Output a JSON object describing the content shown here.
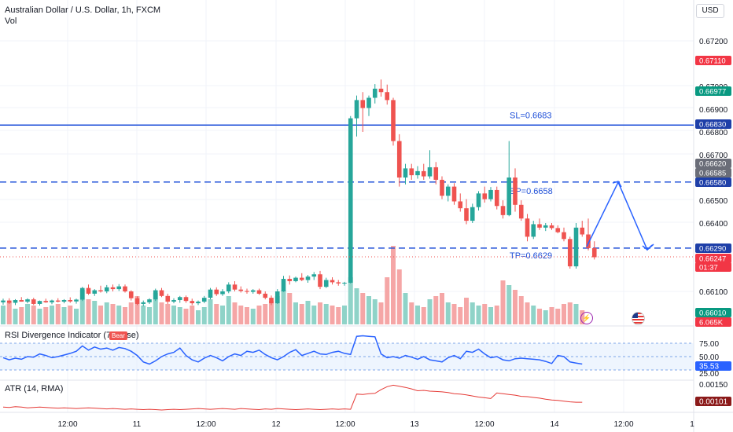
{
  "header": {
    "symbol_title": "Australian Dollar / U.S. Dollar, 1h, FXCM",
    "volume_label": "Vol"
  },
  "currency_button": "USD",
  "colors": {
    "up": "#26a69a",
    "down": "#ef5350",
    "volume_up": "#8fd3c8",
    "volume_down": "#f5a6a6",
    "level_line": "#1e4fd8",
    "rsi_line": "#2962ff",
    "atr_line": "#e53935"
  },
  "price_axis": {
    "ticks": [
      "0.67200",
      "0.67000",
      "0.66900",
      "0.66800",
      "0.66700",
      "0.66500",
      "0.66400",
      "0.66100"
    ],
    "badges": [
      {
        "text": "0.67110",
        "style": "red"
      },
      {
        "text": "0.66977",
        "style": "green"
      },
      {
        "text": "0.66830",
        "style": "navy"
      },
      {
        "text": "0.66620",
        "style": "gray"
      },
      {
        "text": "0.66585",
        "style": "gray"
      },
      {
        "text": "0.66580",
        "style": "navy"
      },
      {
        "text": "0.66290",
        "style": "navy"
      },
      {
        "text": "0.66247",
        "style": "red"
      },
      {
        "text": "01:37",
        "style": "red"
      },
      {
        "text": "0.66010",
        "style": "green"
      },
      {
        "text": "6.065K",
        "style": "red"
      }
    ]
  },
  "levels": [
    {
      "label": "SL=0.6683",
      "price": 0.6683,
      "style": "solid"
    },
    {
      "label": "EP=0.6658",
      "price": 0.6658,
      "style": "dashed"
    },
    {
      "label": "TP=0.6629",
      "price": 0.6629,
      "style": "dashed"
    }
  ],
  "time_axis": [
    "12:00",
    "11",
    "12:00",
    "12",
    "12:00",
    "13",
    "12:00",
    "14",
    "12:00",
    "1"
  ],
  "rsi": {
    "title": "RSI Divergence Indicator (7, close)",
    "flag": "Bear",
    "ticks": [
      "75.00",
      "50.00",
      "25.00"
    ],
    "value_badge": "35.53",
    "values": [
      48,
      44,
      47,
      45,
      50,
      49,
      55,
      52,
      48,
      50,
      53,
      56,
      60,
      70,
      62,
      68,
      64,
      66,
      62,
      67,
      65,
      60,
      52,
      40,
      36,
      42,
      50,
      55,
      58,
      66,
      52,
      44,
      40,
      47,
      52,
      48,
      42,
      50,
      55,
      52,
      60,
      58,
      62,
      54,
      48,
      44,
      50,
      58,
      63,
      52,
      56,
      60,
      55,
      54,
      58,
      60,
      56,
      54,
      88,
      89,
      88,
      87,
      55,
      48,
      50,
      47,
      52,
      49,
      45,
      50,
      44,
      42,
      40,
      48,
      52,
      46,
      60,
      58,
      64,
      55,
      48,
      50,
      44,
      42,
      46,
      47,
      46,
      45,
      44,
      41,
      37,
      52,
      50,
      40,
      38,
      36
    ]
  },
  "atr": {
    "title": "ATR (14, RMA)",
    "ticks": [
      "0.00150"
    ],
    "value_badge": "0.00101",
    "values": [
      0.00088,
      0.00087,
      0.00089,
      0.00088,
      0.00086,
      0.00087,
      0.00088,
      0.00087,
      0.00086,
      0.00085,
      0.00086,
      0.00085,
      0.00084,
      0.00085,
      0.00086,
      0.00085,
      0.00084,
      0.00083,
      0.00084,
      0.00083,
      0.00082,
      0.00083,
      0.00082,
      0.00081,
      0.00082,
      0.00081,
      0.0008,
      0.00081,
      0.00082,
      0.00081,
      0.00082,
      0.00083,
      0.00084,
      0.00083,
      0.00082,
      0.00083,
      0.00084,
      0.00083,
      0.00082,
      0.00084,
      0.00083,
      0.00082,
      0.00081,
      0.00083,
      0.00082,
      0.00084,
      0.00083,
      0.00082,
      0.00081,
      0.00082,
      0.00083,
      0.00082,
      0.00081,
      0.00082,
      0.00083,
      0.00082,
      0.00083,
      0.00082,
      0.00123,
      0.00122,
      0.00124,
      0.00125,
      0.00135,
      0.00143,
      0.00147,
      0.00144,
      0.00141,
      0.00137,
      0.00132,
      0.00133,
      0.00131,
      0.0013,
      0.00129,
      0.00127,
      0.00124,
      0.00123,
      0.00121,
      0.00118,
      0.00115,
      0.00113,
      0.00111,
      0.00126,
      0.00124,
      0.00122,
      0.0012,
      0.00117,
      0.00116,
      0.00114,
      0.00112,
      0.00109,
      0.00107,
      0.00106,
      0.00104,
      0.00102,
      0.00101,
      0.00101
    ]
  },
  "candles": [
    [
      0.66052,
      0.66068,
      0.66042,
      0.6606
    ],
    [
      0.6606,
      0.6607,
      0.66045,
      0.6605
    ],
    [
      0.6605,
      0.66066,
      0.6604,
      0.66062
    ],
    [
      0.66062,
      0.66075,
      0.66055,
      0.66055
    ],
    [
      0.66055,
      0.6607,
      0.66048,
      0.66065
    ],
    [
      0.66065,
      0.66072,
      0.6604,
      0.66045
    ],
    [
      0.66045,
      0.6606,
      0.66038,
      0.66058
    ],
    [
      0.66058,
      0.66068,
      0.6605,
      0.66052
    ],
    [
      0.66052,
      0.66064,
      0.66044,
      0.6606
    ],
    [
      0.6606,
      0.6607,
      0.66052,
      0.66055
    ],
    [
      0.66055,
      0.66066,
      0.66048,
      0.66062
    ],
    [
      0.66062,
      0.66074,
      0.6605,
      0.66056
    ],
    [
      0.66056,
      0.66068,
      0.66046,
      0.66064
    ],
    [
      0.66064,
      0.6612,
      0.66058,
      0.66115
    ],
    [
      0.66115,
      0.6613,
      0.66085,
      0.6609
    ],
    [
      0.6609,
      0.6611,
      0.6608,
      0.66105
    ],
    [
      0.66105,
      0.66125,
      0.66095,
      0.661
    ],
    [
      0.661,
      0.66128,
      0.66092,
      0.66118
    ],
    [
      0.66118,
      0.6613,
      0.661,
      0.6611
    ],
    [
      0.6611,
      0.66132,
      0.66102,
      0.66122
    ],
    [
      0.66122,
      0.6613,
      0.66095,
      0.661
    ],
    [
      0.661,
      0.66105,
      0.6606,
      0.6607
    ],
    [
      0.6607,
      0.66078,
      0.6604,
      0.66045
    ],
    [
      0.66045,
      0.6606,
      0.66035,
      0.66052
    ],
    [
      0.66052,
      0.6607,
      0.66045,
      0.66065
    ],
    [
      0.66065,
      0.66112,
      0.66058,
      0.66105
    ],
    [
      0.66105,
      0.66115,
      0.66075,
      0.6608
    ],
    [
      0.6608,
      0.6609,
      0.66045,
      0.66055
    ],
    [
      0.66055,
      0.6607,
      0.66048,
      0.66062
    ],
    [
      0.66062,
      0.6608,
      0.6605,
      0.66075
    ],
    [
      0.66075,
      0.66082,
      0.6605,
      0.66058
    ],
    [
      0.66058,
      0.66068,
      0.6604,
      0.66048
    ],
    [
      0.66048,
      0.6606,
      0.6604,
      0.66055
    ],
    [
      0.66055,
      0.6608,
      0.66048,
      0.66072
    ],
    [
      0.66072,
      0.66115,
      0.66065,
      0.66108
    ],
    [
      0.66108,
      0.66118,
      0.6608,
      0.66088
    ],
    [
      0.66088,
      0.6611,
      0.6608,
      0.661
    ],
    [
      0.661,
      0.6614,
      0.66092,
      0.6613
    ],
    [
      0.6613,
      0.66145,
      0.661,
      0.66108
    ],
    [
      0.66108,
      0.66122,
      0.66095,
      0.66102
    ],
    [
      0.66102,
      0.66112,
      0.6609,
      0.66098
    ],
    [
      0.66098,
      0.6611,
      0.6609,
      0.66105
    ],
    [
      0.66105,
      0.66112,
      0.66085,
      0.6609
    ],
    [
      0.6609,
      0.661,
      0.66065,
      0.66072
    ],
    [
      0.66072,
      0.66082,
      0.6604,
      0.66048
    ],
    [
      0.66048,
      0.6611,
      0.66045,
      0.661
    ],
    [
      0.661,
      0.66168,
      0.66098,
      0.66155
    ],
    [
      0.66155,
      0.6617,
      0.6613,
      0.66145
    ],
    [
      0.66145,
      0.66165,
      0.6614,
      0.6616
    ],
    [
      0.6616,
      0.6618,
      0.66145,
      0.6615
    ],
    [
      0.6615,
      0.66172,
      0.66138,
      0.66165
    ],
    [
      0.66165,
      0.66185,
      0.6615,
      0.66175
    ],
    [
      0.66175,
      0.6619,
      0.6611,
      0.6612
    ],
    [
      0.6612,
      0.6616,
      0.66115,
      0.6615
    ],
    [
      0.6615,
      0.66162,
      0.6613,
      0.6614
    ],
    [
      0.6614,
      0.6615,
      0.66125,
      0.66135
    ],
    [
      0.66135,
      0.66142,
      0.66125,
      0.66138
    ],
    [
      0.66138,
      0.6687,
      0.66135,
      0.6686
    ],
    [
      0.6686,
      0.6696,
      0.6678,
      0.6694
    ],
    [
      0.6694,
      0.66975,
      0.668,
      0.66905
    ],
    [
      0.66905,
      0.6696,
      0.6687,
      0.6695
    ],
    [
      0.6695,
      0.6701,
      0.66925,
      0.6699
    ],
    [
      0.6699,
      0.6703,
      0.66955,
      0.66975
    ],
    [
      0.66975,
      0.67008,
      0.6692,
      0.6694
    ],
    [
      0.6694,
      0.6695,
      0.6674,
      0.6676
    ],
    [
      0.6676,
      0.6679,
      0.6656,
      0.666
    ],
    [
      0.666,
      0.6666,
      0.6657,
      0.6664
    ],
    [
      0.6664,
      0.6666,
      0.6659,
      0.6661
    ],
    [
      0.6661,
      0.6665,
      0.66595,
      0.66628
    ],
    [
      0.66628,
      0.6666,
      0.6659,
      0.66605
    ],
    [
      0.66605,
      0.6672,
      0.66595,
      0.66645
    ],
    [
      0.66645,
      0.66668,
      0.6657,
      0.6659
    ],
    [
      0.6659,
      0.66605,
      0.66505,
      0.6652
    ],
    [
      0.6652,
      0.6657,
      0.66495,
      0.6656
    ],
    [
      0.6656,
      0.66575,
      0.6648,
      0.66495
    ],
    [
      0.66495,
      0.6653,
      0.6645,
      0.66465
    ],
    [
      0.66465,
      0.66505,
      0.66395,
      0.6641
    ],
    [
      0.6641,
      0.66485,
      0.664,
      0.6647
    ],
    [
      0.6647,
      0.6654,
      0.66455,
      0.6653
    ],
    [
      0.6653,
      0.6656,
      0.6649,
      0.66505
    ],
    [
      0.66505,
      0.66558,
      0.66495,
      0.66545
    ],
    [
      0.66545,
      0.6656,
      0.6646,
      0.66475
    ],
    [
      0.66475,
      0.665,
      0.6642,
      0.66435
    ],
    [
      0.66435,
      0.6676,
      0.6643,
      0.666
    ],
    [
      0.666,
      0.6664,
      0.6645,
      0.6648
    ],
    [
      0.6648,
      0.665,
      0.6641,
      0.6642
    ],
    [
      0.6642,
      0.6644,
      0.6632,
      0.6634
    ],
    [
      0.6634,
      0.6641,
      0.6633,
      0.66395
    ],
    [
      0.66395,
      0.6642,
      0.6637,
      0.6638
    ],
    [
      0.6638,
      0.664,
      0.66365,
      0.6639
    ],
    [
      0.6639,
      0.664,
      0.6637,
      0.66378
    ],
    [
      0.66378,
      0.6639,
      0.66355,
      0.6636
    ],
    [
      0.6636,
      0.6638,
      0.6632,
      0.6633
    ],
    [
      0.6633,
      0.6634,
      0.662,
      0.6621
    ],
    [
      0.6621,
      0.664,
      0.662,
      0.6638
    ],
    [
      0.6638,
      0.6641,
      0.6634,
      0.6635
    ],
    [
      0.6635,
      0.6642,
      0.6628,
      0.6629
    ],
    [
      0.6629,
      0.6632,
      0.6624,
      0.6625
    ]
  ],
  "volumes": [
    12,
    14,
    10,
    11,
    13,
    12,
    10,
    11,
    12,
    13,
    11,
    12,
    10,
    22,
    16,
    15,
    12,
    14,
    13,
    12,
    11,
    14,
    18,
    12,
    11,
    20,
    14,
    13,
    12,
    11,
    10,
    12,
    9,
    11,
    16,
    13,
    12,
    18,
    14,
    12,
    11,
    10,
    12,
    13,
    15,
    18,
    22,
    20,
    14,
    13,
    15,
    12,
    14,
    13,
    12,
    11,
    12,
    30,
    23,
    20,
    18,
    16,
    14,
    30,
    50,
    35,
    20,
    14,
    12,
    11,
    16,
    18,
    20,
    14,
    13,
    11,
    17,
    14,
    12,
    13,
    11,
    12,
    28,
    25,
    22,
    18,
    14,
    12,
    10,
    9,
    11,
    10,
    13,
    14,
    13,
    9
  ]
}
